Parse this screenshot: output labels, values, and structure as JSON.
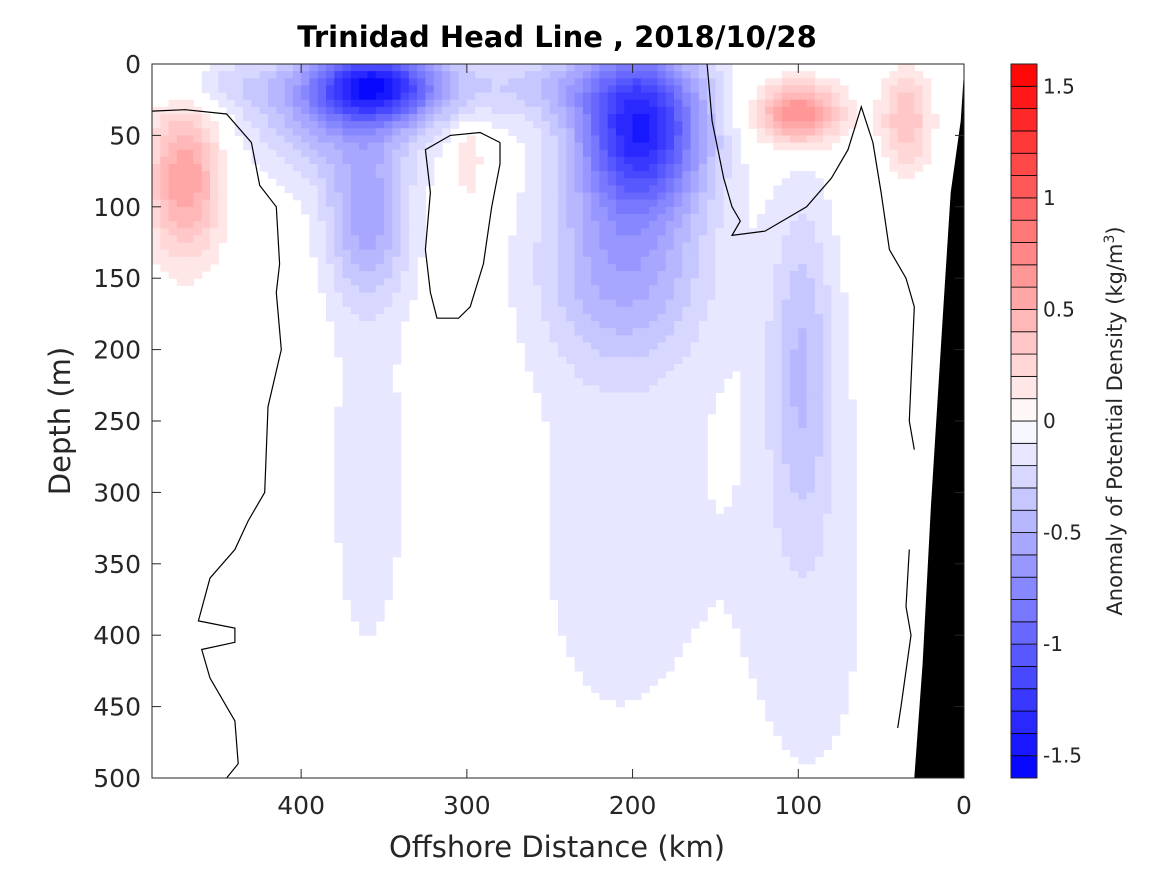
{
  "chart_data": {
    "type": "heatmap",
    "title": "Trinidad Head Line , 2018/10/28",
    "xlabel": "Offshore Distance (km)",
    "ylabel": "Depth (m)",
    "xlim": [
      490,
      0
    ],
    "ylim": [
      0,
      500
    ],
    "x_reversed": true,
    "y_reversed": true,
    "x_ticks": [
      400,
      300,
      200,
      100,
      0
    ],
    "y_ticks": [
      0,
      50,
      100,
      150,
      200,
      250,
      300,
      350,
      400,
      450,
      500
    ],
    "colorbar": {
      "label": "Anomaly of Potential Density (kg/m",
      "label_superscript": "3",
      "label_suffix": ")",
      "range": [
        -1.6,
        1.6
      ],
      "step": 0.1,
      "ticks": [
        1.5,
        1,
        0.5,
        0,
        -0.5,
        -1,
        -1.5
      ],
      "tick_labels": [
        "1.5",
        "1",
        "0.5",
        "0",
        "-0.5",
        "-1",
        "-1.5"
      ],
      "negative_color": "#0000ff",
      "positive_color": "#ff0000",
      "zero_color": "#ffffff"
    },
    "features": [
      {
        "sign": "neg",
        "x": 355,
        "y": 15,
        "sx": 38,
        "sy": 25,
        "amp": -1.2
      },
      {
        "sign": "neg",
        "x": 380,
        "y": 35,
        "sx": 55,
        "sy": 45,
        "amp": -0.45
      },
      {
        "sign": "neg",
        "x": 195,
        "y": 45,
        "sx": 38,
        "sy": 55,
        "amp": -1.3
      },
      {
        "sign": "neg",
        "x": 205,
        "y": 140,
        "sx": 50,
        "sy": 70,
        "amp": -0.5
      },
      {
        "sign": "neg",
        "x": 360,
        "y": 110,
        "sx": 25,
        "sy": 55,
        "amp": -0.5
      },
      {
        "sign": "neg",
        "x": 250,
        "y": 15,
        "sx": 70,
        "sy": 25,
        "amp": -0.3
      },
      {
        "sign": "neg",
        "x": 450,
        "y": 15,
        "sx": 40,
        "sy": 18,
        "amp": -0.2
      },
      {
        "sign": "neg",
        "x": 98,
        "y": 210,
        "sx": 20,
        "sy": 120,
        "amp": -0.35
      },
      {
        "sign": "neg",
        "x": 360,
        "y": 290,
        "sx": 30,
        "sy": 170,
        "amp": -0.15
      },
      {
        "sign": "neg",
        "x": 210,
        "y": 330,
        "sx": 70,
        "sy": 200,
        "amp": -0.14
      },
      {
        "sign": "neg",
        "x": 90,
        "y": 380,
        "sx": 55,
        "sy": 220,
        "amp": -0.12
      },
      {
        "sign": "pos",
        "x": 470,
        "y": 80,
        "sx": 22,
        "sy": 55,
        "amp": 0.6
      },
      {
        "sign": "pos",
        "x": 300,
        "y": 65,
        "sx": 10,
        "sy": 25,
        "amp": 0.25
      },
      {
        "sign": "pos",
        "x": 298,
        "y": 130,
        "sx": 9,
        "sy": 35,
        "amp": 0.12
      },
      {
        "sign": "pos",
        "x": 100,
        "y": 35,
        "sx": 25,
        "sy": 22,
        "amp": 0.75
      },
      {
        "sign": "pos",
        "x": 35,
        "y": 40,
        "sx": 15,
        "sy": 35,
        "amp": 0.4
      }
    ],
    "zero_contours": [
      [
        [
          490,
          33
        ],
        [
          470,
          32
        ],
        [
          445,
          35
        ],
        [
          430,
          55
        ],
        [
          425,
          85
        ],
        [
          415,
          100
        ],
        [
          413,
          140
        ],
        [
          415,
          160
        ],
        [
          412,
          200
        ],
        [
          420,
          240
        ],
        [
          422,
          300
        ],
        [
          432,
          320
        ],
        [
          440,
          340
        ],
        [
          455,
          360
        ],
        [
          462,
          390
        ],
        [
          440,
          395
        ],
        [
          440,
          405
        ],
        [
          460,
          410
        ],
        [
          455,
          430
        ],
        [
          440,
          460
        ],
        [
          438,
          490
        ],
        [
          445,
          500
        ]
      ],
      [
        [
          280,
          55
        ],
        [
          292,
          48
        ],
        [
          310,
          50
        ],
        [
          325,
          60
        ],
        [
          322,
          90
        ],
        [
          325,
          130
        ],
        [
          322,
          160
        ],
        [
          318,
          178
        ],
        [
          305,
          178
        ],
        [
          298,
          170
        ],
        [
          290,
          140
        ],
        [
          285,
          100
        ],
        [
          280,
          70
        ],
        [
          280,
          55
        ]
      ],
      [
        [
          155,
          0
        ],
        [
          152,
          40
        ],
        [
          145,
          80
        ],
        [
          140,
          100
        ],
        [
          135,
          110
        ],
        [
          140,
          120
        ],
        [
          120,
          117
        ],
        [
          95,
          100
        ],
        [
          80,
          80
        ],
        [
          70,
          60
        ],
        [
          62,
          30
        ],
        [
          55,
          55
        ],
        [
          50,
          90
        ],
        [
          45,
          130
        ],
        [
          35,
          150
        ],
        [
          30,
          170
        ],
        [
          33,
          250
        ],
        [
          30,
          270
        ]
      ],
      [
        [
          33,
          340
        ],
        [
          35,
          380
        ],
        [
          32,
          400
        ],
        [
          38,
          450
        ],
        [
          40,
          465
        ]
      ]
    ],
    "bathymetry": [
      [
        0,
        5
      ],
      [
        2,
        40
      ],
      [
        8,
        90
      ],
      [
        13,
        180
      ],
      [
        20,
        310
      ],
      [
        25,
        420
      ],
      [
        30,
        500
      ],
      [
        0,
        500
      ]
    ]
  }
}
